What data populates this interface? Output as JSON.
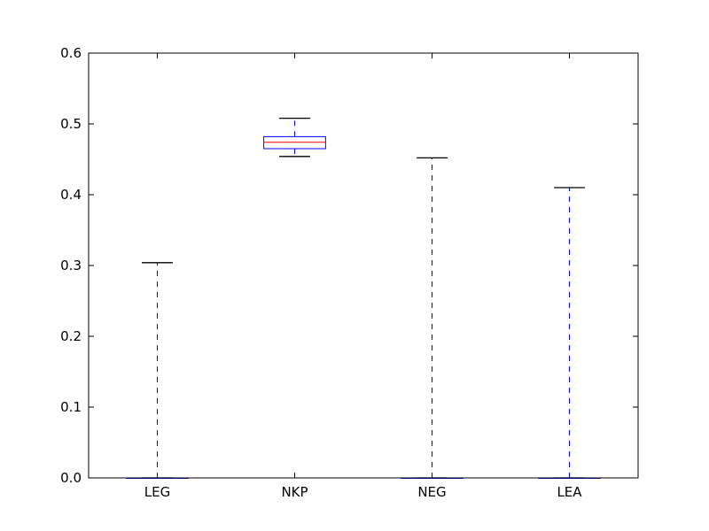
{
  "chart_data": {
    "type": "box",
    "title": "",
    "xlabel": "",
    "ylabel": "",
    "categories": [
      "LEG",
      "NKP",
      "NEG",
      "LEA"
    ],
    "boxes": [
      {
        "label": "LEG",
        "whisker_low": 0.0,
        "q1": 0.0,
        "median": 0.0,
        "q3": 0.0,
        "whisker_high": 0.304
      },
      {
        "label": "NKP",
        "whisker_low": 0.454,
        "q1": 0.465,
        "median": 0.474,
        "q3": 0.482,
        "whisker_high": 0.508
      },
      {
        "label": "NEG",
        "whisker_low": 0.0,
        "q1": 0.0,
        "median": 0.0,
        "q3": 0.0,
        "whisker_high": 0.452
      },
      {
        "label": "LEA",
        "whisker_low": 0.0,
        "q1": 0.0,
        "median": 0.0,
        "q3": 0.0,
        "whisker_high": 0.41
      }
    ],
    "ylim": [
      0.0,
      0.6
    ],
    "yticks": [
      "0.0",
      "0.1",
      "0.2",
      "0.3",
      "0.4",
      "0.5",
      "0.6"
    ],
    "grid": false,
    "colors": {
      "box": "#0000ff",
      "median": "#ff0000",
      "whisker": "#0000ff",
      "cap": "#000000",
      "axis": "#000000"
    }
  }
}
